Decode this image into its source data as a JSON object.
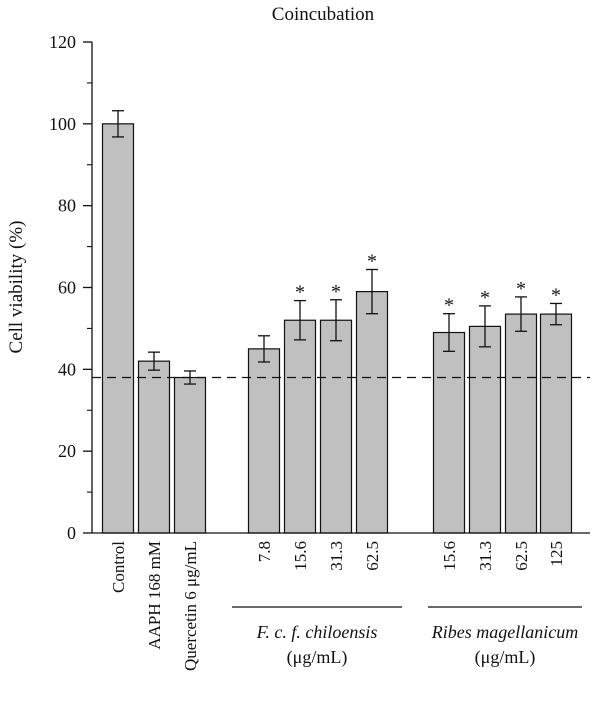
{
  "chart_data": {
    "type": "bar",
    "title": "Coincubation",
    "ylabel": "Cell viability (%)",
    "ylim": [
      0,
      120
    ],
    "yticks": [
      0,
      20,
      40,
      60,
      80,
      100,
      120
    ],
    "reference_line": 38,
    "colors": {
      "bar": "#c0c0c0",
      "stroke": "#111111"
    },
    "bars": [
      {
        "label": "Control",
        "value": 100,
        "error": 3.2,
        "significant": false
      },
      {
        "label": "AAPH 168 mM",
        "value": 42,
        "error": 2.2,
        "significant": false
      },
      {
        "label": "Quercetin 6 μg/mL",
        "value": 38,
        "error": 1.6,
        "significant": false
      },
      {
        "label": "7.8",
        "value": 45,
        "error": 3.2,
        "significant": false
      },
      {
        "label": "15.6",
        "value": 52,
        "error": 4.8,
        "significant": true
      },
      {
        "label": "31.3",
        "value": 52,
        "error": 5.0,
        "significant": true
      },
      {
        "label": "62.5",
        "value": 59,
        "error": 5.4,
        "significant": true
      },
      {
        "label": "15.6",
        "value": 49,
        "error": 4.6,
        "significant": true
      },
      {
        "label": "31.3",
        "value": 50.5,
        "error": 5.0,
        "significant": true
      },
      {
        "label": "62.5",
        "value": 53.5,
        "error": 4.2,
        "significant": true
      },
      {
        "label": "125",
        "value": 53.5,
        "error": 2.6,
        "significant": true
      }
    ],
    "significance_marker": "*",
    "groups": [
      {
        "line1": "F. c. f. chiloensis",
        "line2": "(μg/mL)"
      },
      {
        "line1": "Ribes magellanicum",
        "line2": "(μg/mL)"
      }
    ]
  }
}
